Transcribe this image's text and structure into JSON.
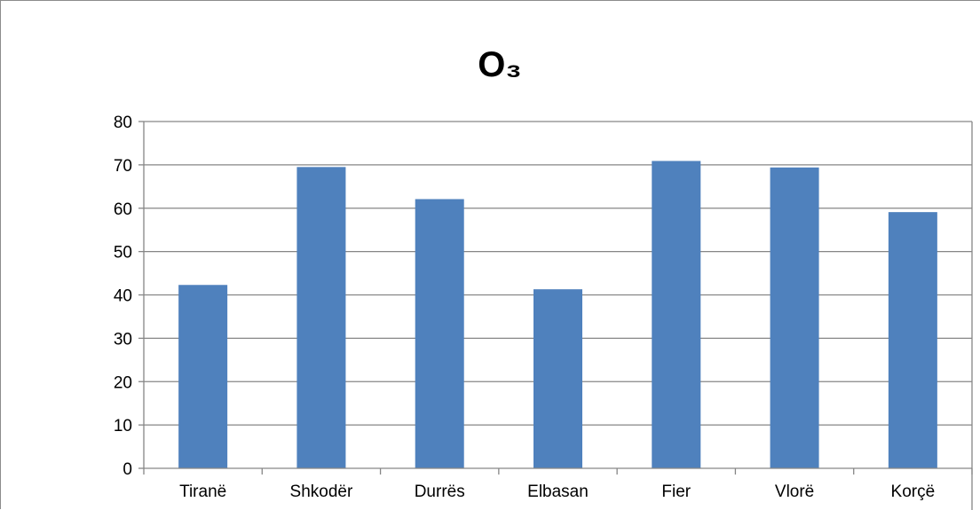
{
  "chart_data": {
    "type": "bar",
    "title": "O₃",
    "categories": [
      "Tiranë",
      "Shkodër",
      "Durrës",
      "Elbasan",
      "Fier",
      "Vlorë",
      "Korçë"
    ],
    "series": [
      {
        "values": [
          42.3,
          69.5,
          62.1,
          41.3,
          70.9,
          69.4,
          59.1
        ]
      }
    ],
    "ylim": [
      0,
      80
    ],
    "yticks": [
      0,
      10,
      20,
      30,
      40,
      50,
      60,
      70,
      80
    ],
    "grid": true,
    "legend": "none",
    "colors": {
      "bar": "#4f81bd",
      "grid": "#868686",
      "axis": "#868686"
    }
  }
}
